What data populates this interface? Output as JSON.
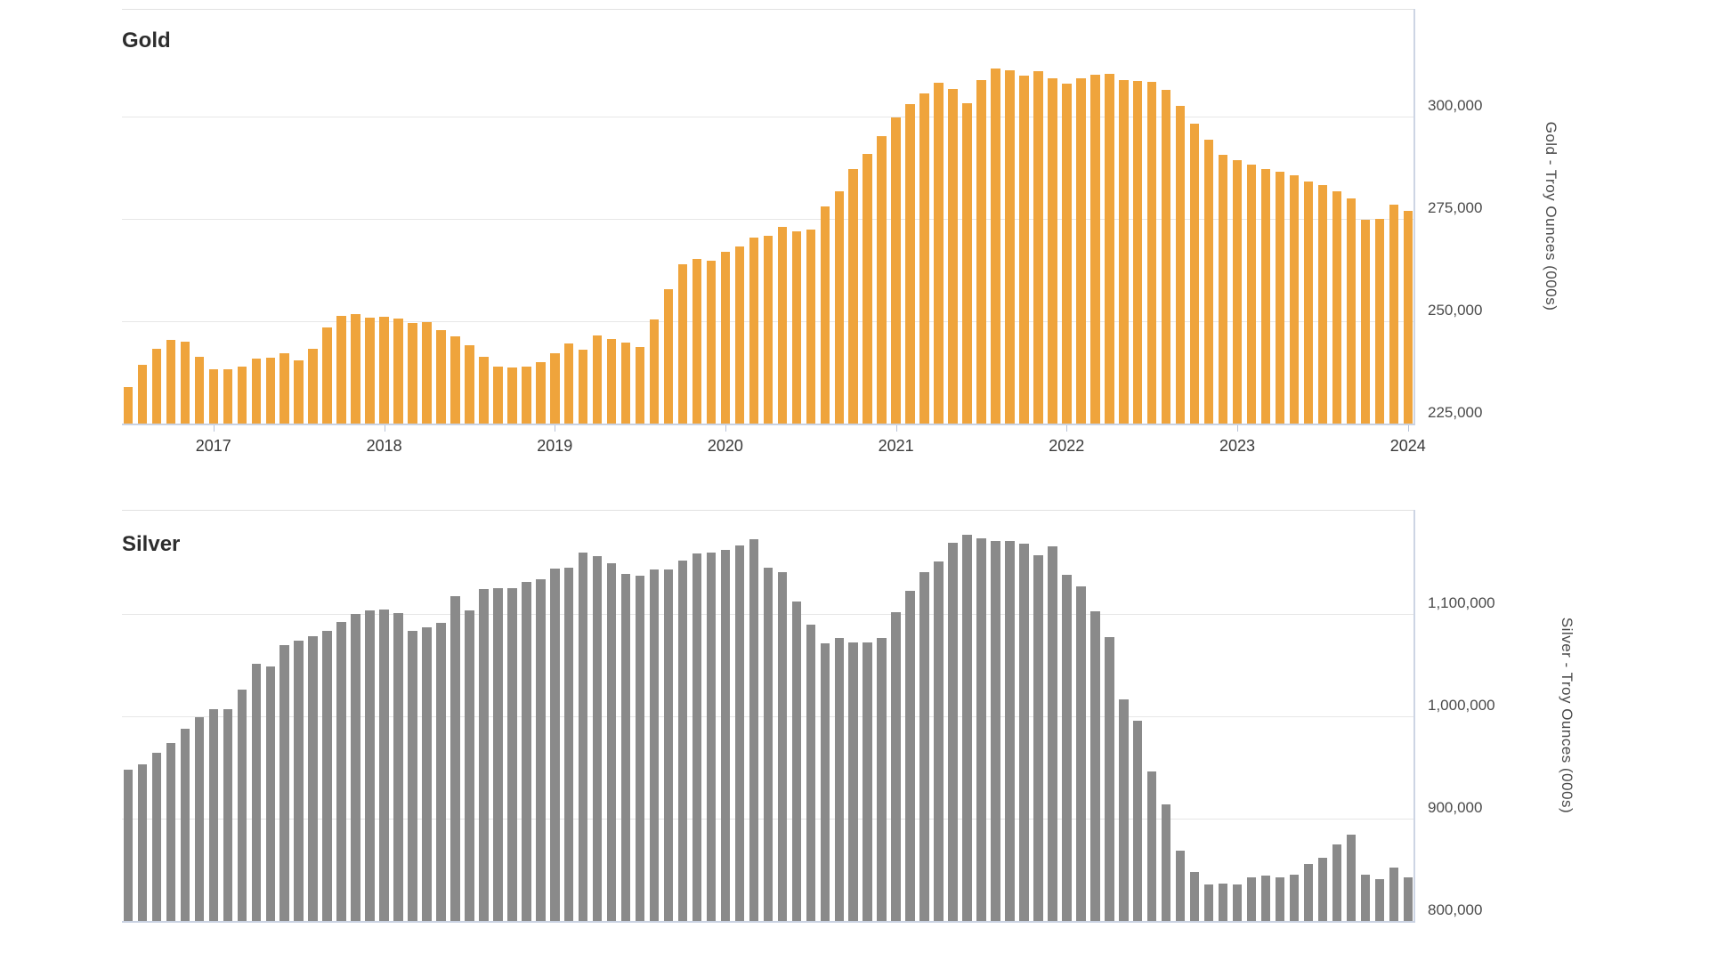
{
  "page": {
    "background": "#ffffff"
  },
  "chart_data": [
    {
      "id": "gold",
      "type": "bar",
      "title": "Gold",
      "axis_title": "Gold - Troy Ounces (000s)",
      "bar_color": "#EFA43C",
      "frequency": "monthly",
      "x_start": "2016-07",
      "x_end": "2024-01",
      "grid": true,
      "axis_side": "right",
      "y_min": 225000,
      "y_max": 312500,
      "y_ticks": [
        {
          "label": "300,000",
          "value": 300000
        },
        {
          "label": "275,000",
          "value": 275000
        },
        {
          "label": "250,000",
          "value": 250000
        },
        {
          "label": "225,000",
          "value": 225000
        }
      ],
      "x_ticks": [
        "2017",
        "2018",
        "2019",
        "2020",
        "2021",
        "2022",
        "2023",
        "2024"
      ],
      "x_ticks_visible": true,
      "values": [
        233900,
        239300,
        243300,
        245400,
        245000,
        241300,
        238300,
        238300,
        238900,
        240900,
        241000,
        242200,
        240400,
        243300,
        248500,
        251300,
        251700,
        250900,
        251000,
        250700,
        249600,
        249800,
        247800,
        246300,
        244100,
        241300,
        238900,
        238700,
        239000,
        240000,
        242200,
        244600,
        243000,
        246500,
        245700,
        244800,
        243700,
        250400,
        257800,
        263900,
        265200,
        264800,
        267000,
        268300,
        270400,
        270900,
        273000,
        272000,
        272400,
        278100,
        281700,
        287200,
        290900,
        295200,
        299800,
        303000,
        305700,
        308300,
        306700,
        303300,
        308900,
        311700,
        311300,
        310000,
        311100,
        309300,
        308000,
        309300,
        310200,
        310400,
        308900,
        308700,
        308500,
        306500,
        302600,
        298300,
        294300,
        290700,
        289300,
        288300,
        287200,
        286500,
        285700,
        284100,
        283300,
        281700,
        280000,
        274800,
        275000,
        278500,
        277000
      ]
    },
    {
      "id": "silver",
      "type": "bar",
      "title": "Silver",
      "axis_title": "Silver - Troy Ounces (000s)",
      "bar_color": "#8A8A8A",
      "frequency": "monthly",
      "x_start": "2016-07",
      "x_end": "2024-01",
      "grid": true,
      "axis_side": "right",
      "y_min": 800000,
      "y_max": 1200000,
      "y_ticks": [
        {
          "label": "1,100,000",
          "value": 1100000
        },
        {
          "label": "1,000,000",
          "value": 1000000
        },
        {
          "label": "900,000",
          "value": 900000
        },
        {
          "label": "800,000",
          "value": 800000
        }
      ],
      "x_ticks": [],
      "x_ticks_visible": false,
      "values": [
        947900,
        953100,
        964400,
        974000,
        987900,
        999200,
        1007100,
        1007100,
        1026200,
        1051400,
        1048800,
        1069700,
        1074000,
        1078400,
        1083600,
        1092300,
        1100100,
        1103600,
        1104500,
        1101000,
        1083600,
        1087100,
        1091400,
        1117500,
        1103600,
        1124500,
        1125400,
        1125400,
        1131500,
        1134100,
        1144500,
        1145400,
        1160200,
        1156700,
        1149700,
        1139300,
        1137600,
        1143700,
        1143700,
        1152400,
        1159300,
        1160200,
        1162800,
        1167100,
        1173200,
        1145400,
        1141000,
        1112300,
        1089700,
        1071400,
        1076700,
        1072300,
        1072300,
        1076700,
        1101900,
        1122800,
        1141000,
        1151500,
        1169800,
        1177600,
        1174000,
        1171500,
        1171500,
        1168900,
        1157600,
        1166300,
        1138400,
        1127100,
        1102800,
        1077500,
        1016600,
        995800,
        946200,
        914000,
        868700,
        847900,
        835700,
        836500,
        835700,
        842600,
        844400,
        842600,
        845200,
        855700,
        861800,
        874800,
        884400,
        845200,
        840900,
        852200,
        842600
      ]
    }
  ]
}
